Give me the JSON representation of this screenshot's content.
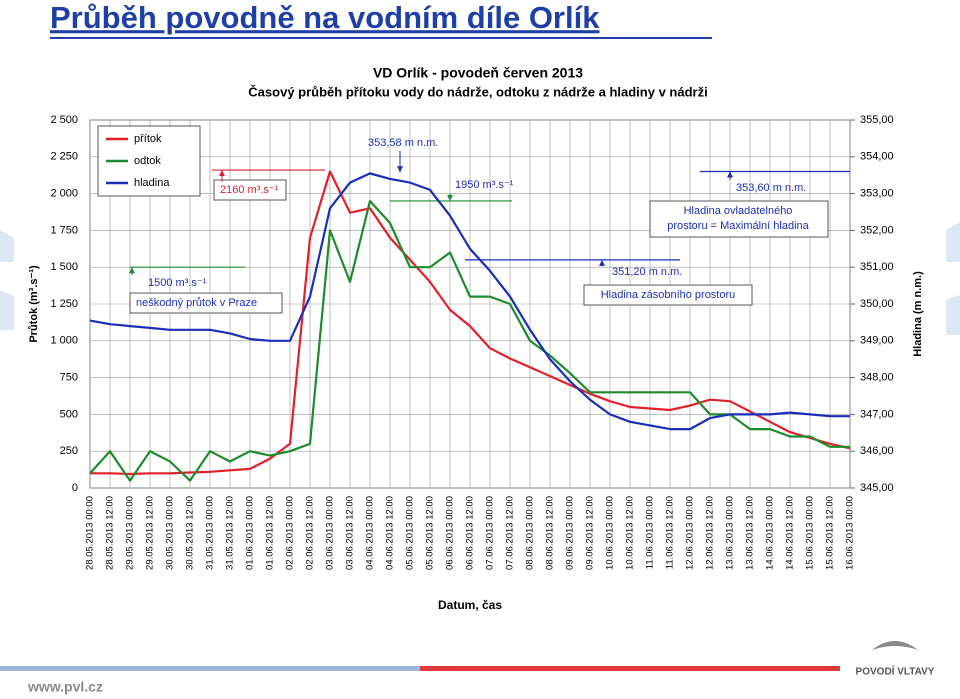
{
  "header": {
    "title": "Průběh povodně na vodním díle Orlík"
  },
  "chart_data": {
    "type": "line",
    "title": "VD Orlík - povodeň červen 2013",
    "subtitle": "Časový průběh přítoku vody do nádrže, odtoku z nádrže a hladiny v nádrži",
    "x_label": "Datum, čas",
    "y_label": "Průtok (m³.s⁻¹)",
    "y2_label": "Hladina (m n.m.)",
    "categories": [
      "28.05.2013 00:00",
      "28.05.2013 12:00",
      "29.05.2013 00:00",
      "29.05.2013 12:00",
      "30.05.2013 00:00",
      "30.05.2013 12:00",
      "31.05.2013 00:00",
      "31.05.2013 12:00",
      "01.06.2013 00:00",
      "01.06.2013 12:00",
      "02.06.2013 00:00",
      "02.06.2013 12:00",
      "03.06.2013 00:00",
      "03.06.2013 12:00",
      "04.06.2013 00:00",
      "04.06.2013 12:00",
      "05.06.2013 00:00",
      "05.06.2013 12:00",
      "06.06.2013 00:00",
      "06.06.2013 12:00",
      "07.06.2013 00:00",
      "07.06.2013 12:00",
      "08.06.2013 00:00",
      "08.06.2013 12:00",
      "09.06.2013 00:00",
      "09.06.2013 12:00",
      "10.06.2013 00:00",
      "10.06.2013 12:00",
      "11.06.2013 00:00",
      "11.06.2013 12:00",
      "12.06.2013 00:00",
      "12.06.2013 12:00",
      "13.06.2013 00:00",
      "13.06.2013 12:00",
      "14.06.2013 00:00",
      "14.06.2013 12:00",
      "15.06.2013 00:00",
      "15.06.2013 12:00",
      "16.06.2013 00:00"
    ],
    "series": [
      {
        "name": "přítok",
        "color": "#e3202a",
        "values": [
          100,
          100,
          95,
          100,
          100,
          105,
          110,
          120,
          130,
          200,
          300,
          1700,
          2150,
          1870,
          1900,
          1700,
          1550,
          1400,
          1210,
          1100,
          950,
          880,
          820,
          760,
          700,
          640,
          590,
          550,
          540,
          530,
          560,
          600,
          590,
          520,
          450,
          380,
          340,
          300,
          270
        ]
      },
      {
        "name": "odtok",
        "color": "#1e8c2c",
        "values": [
          100,
          250,
          50,
          250,
          180,
          50,
          250,
          180,
          250,
          220,
          250,
          300,
          1750,
          1400,
          1950,
          1800,
          1500,
          1500,
          1600,
          1300,
          1300,
          1250,
          1000,
          900,
          780,
          650,
          650,
          650,
          650,
          650,
          650,
          500,
          500,
          400,
          400,
          350,
          350,
          280,
          280
        ]
      },
      {
        "name": "hladina",
        "color": "#1a2fb8",
        "axis": "y2",
        "values": [
          349.55,
          349.45,
          349.4,
          349.35,
          349.3,
          349.3,
          349.3,
          349.2,
          349.05,
          349.0,
          349.0,
          350.2,
          352.6,
          353.3,
          353.55,
          353.4,
          353.3,
          353.1,
          352.4,
          351.5,
          350.9,
          350.2,
          349.3,
          348.5,
          347.9,
          347.4,
          347.0,
          346.8,
          346.7,
          346.6,
          346.6,
          346.9,
          347.0,
          347.0,
          347.0,
          347.05,
          347.0,
          346.95,
          346.95
        ]
      }
    ],
    "ylim": [
      0,
      2500
    ],
    "yticks": [
      0,
      250,
      500,
      750,
      {
        "value": 1000,
        "label": "1 000"
      },
      {
        "value": 1250,
        "label": "1 250"
      },
      {
        "value": 1500,
        "label": "1 500"
      },
      {
        "value": 1750,
        "label": "1 750"
      },
      {
        "value": 2000,
        "label": "2 000"
      },
      {
        "value": 2250,
        "label": "2 250"
      },
      {
        "value": 2500,
        "label": "2 500"
      }
    ],
    "y2lim": [
      345,
      355
    ],
    "y2ticks": [
      {
        "value": 345,
        "label": "345,00"
      },
      {
        "value": 346,
        "label": "346,00"
      },
      {
        "value": 347,
        "label": "347,00"
      },
      {
        "value": 348,
        "label": "348,00"
      },
      {
        "value": 349,
        "label": "349,00"
      },
      {
        "value": 350,
        "label": "350,00"
      },
      {
        "value": 351,
        "label": "351,00"
      },
      {
        "value": 352,
        "label": "352,00"
      },
      {
        "value": 353,
        "label": "353,00"
      },
      {
        "value": 354,
        "label": "354,00"
      },
      {
        "value": 355,
        "label": "355,00"
      }
    ],
    "grid": true,
    "legend": "upper left",
    "annotations": [
      {
        "text": "2160 m³.s⁻¹",
        "value": 2160,
        "axis": "y"
      },
      {
        "text": "1950 m³.s⁻¹",
        "value": 1950,
        "axis": "y"
      },
      {
        "text": "1500 m³.s⁻¹",
        "value": 1500,
        "axis": "y"
      },
      {
        "text": "neškodný průtok v Praze"
      },
      {
        "text": "353,58 m n.m.",
        "value": 353.58,
        "axis": "y2"
      },
      {
        "text": "353,60 m n.m.",
        "value": 353.6,
        "axis": "y2"
      },
      {
        "text": "Hladina ovladatelného"
      },
      {
        "text": "prostoru = Maximální hladina"
      },
      {
        "text": "351,20 m n.m.",
        "value": 351.2,
        "axis": "y2"
      },
      {
        "text": "Hladina zásobního prostoru"
      }
    ]
  },
  "footer": {
    "url": "www.pvl.cz",
    "logo": "POVODÍ VLTAVY"
  }
}
